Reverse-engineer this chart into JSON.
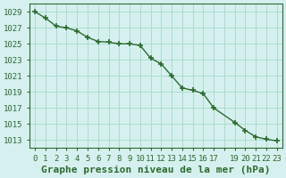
{
  "x": [
    0,
    1,
    2,
    3,
    4,
    5,
    6,
    7,
    8,
    9,
    10,
    11,
    12,
    13,
    14,
    15,
    16,
    17,
    19,
    20,
    21,
    22,
    23
  ],
  "y": [
    1029.0,
    1028.2,
    1027.2,
    1027.0,
    1026.6,
    1025.8,
    1025.3,
    1025.2,
    1025.0,
    1025.0,
    1024.8,
    1023.2,
    1022.5,
    1021.0,
    1019.5,
    1019.2,
    1018.8,
    1017.0,
    1015.2,
    1014.2,
    1013.4,
    1013.1,
    1012.9
  ],
  "line_color": "#2d6a2d",
  "marker": "+",
  "background_color": "#d6f0f0",
  "grid_color": "#aaddcc",
  "xlabel": "Graphe pression niveau de la mer (hPa)",
  "ylim": [
    1012,
    1030
  ],
  "xlim": [
    -0.5,
    23.5
  ],
  "yticks": [
    1013,
    1015,
    1017,
    1019,
    1021,
    1023,
    1025,
    1027,
    1029
  ],
  "xticks": [
    0,
    1,
    2,
    3,
    4,
    5,
    6,
    7,
    8,
    9,
    10,
    11,
    12,
    13,
    14,
    15,
    16,
    17,
    18,
    19,
    20,
    21,
    22,
    23
  ],
  "xtick_labels": [
    "0",
    "1",
    "2",
    "3",
    "4",
    "5",
    "6",
    "7",
    "8",
    "9",
    "10",
    "11",
    "12",
    "13",
    "14",
    "15",
    "16",
    "17",
    "",
    "19",
    "20",
    "21",
    "22",
    "23"
  ],
  "title_fontsize": 8,
  "tick_fontsize": 6.5
}
